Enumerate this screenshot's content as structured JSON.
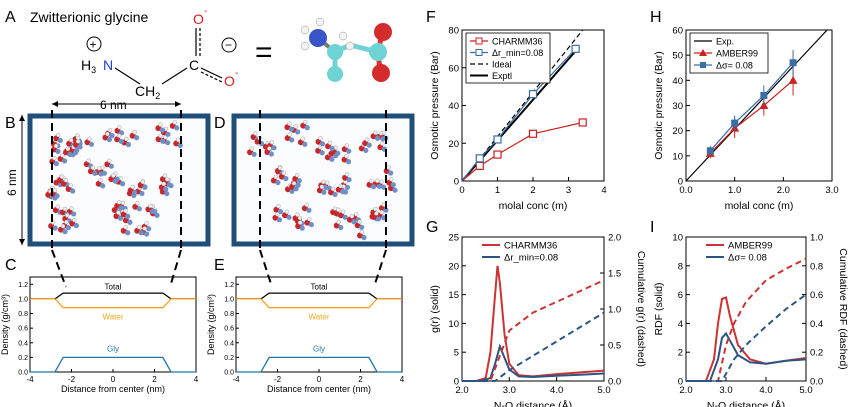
{
  "panel_labels": [
    "A",
    "B",
    "C",
    "D",
    "E",
    "F",
    "G",
    "H",
    "I"
  ],
  "panelA": {
    "title": "Zwitterionic glycine",
    "equals": "=",
    "formula": {
      "plus": "+",
      "h3": "H",
      "h3_sub": "3",
      "n": "N",
      "ch2": "CH",
      "ch2_sub": "2",
      "c": "C",
      "minus": "−",
      "o": "O",
      "o_sup": "-"
    }
  },
  "panelB": {
    "dimension_top": "6 nm",
    "dimension_side": "6 nm"
  },
  "density_panels": {
    "ylabel": "Density (g/cm³)",
    "xlabel": "Distance from center (nm)",
    "xticks": [
      "-4",
      "-2",
      "0",
      "2",
      "4"
    ],
    "yticks": [
      "0.0",
      "0.2",
      "0.4",
      "0.6",
      "0.8",
      "1.0",
      "1.2"
    ],
    "labels": [
      "Total",
      "Water",
      "Gly"
    ],
    "colors": {
      "total": "#000000",
      "water": "#f0a520",
      "gly": "#2276a8"
    }
  },
  "chart_data": [
    {
      "panel": "F",
      "type": "line",
      "xlabel": "molal conc (m)",
      "ylabel": "Osmotic pressure (Bar)",
      "xlim": [
        0,
        4
      ],
      "ylim": [
        0,
        80
      ],
      "xticks": [
        "0",
        "1",
        "2",
        "3",
        "4"
      ],
      "yticks": [
        "0",
        "20",
        "40",
        "60",
        "80"
      ],
      "legend": [
        "CHARMM36",
        "Δr_min=0.08",
        "Ideal",
        "Exptl"
      ],
      "series": [
        {
          "name": "CHARMM36",
          "color": "#cc2222",
          "x": [
            0.5,
            1.0,
            2.0,
            3.4
          ],
          "y": [
            8,
            14,
            25,
            31
          ]
        },
        {
          "name": "Δr_min=0.08",
          "color": "#3a6ea5",
          "x": [
            0.5,
            1.0,
            2.0,
            3.2
          ],
          "y": [
            12,
            22,
            46,
            70
          ]
        },
        {
          "name": "Ideal",
          "color": "#000000",
          "x": [
            0,
            3.4
          ],
          "y": [
            0,
            80
          ]
        },
        {
          "name": "Exptl",
          "color": "#000000",
          "x": [
            0,
            3.3
          ],
          "y": [
            0,
            71
          ]
        }
      ]
    },
    {
      "panel": "H",
      "type": "line",
      "xlabel": "molal conc (m)",
      "ylabel": "Osmotic pressure (Bar)",
      "xlim": [
        0,
        3
      ],
      "ylim": [
        0,
        60
      ],
      "xticks": [
        "0.0",
        "1.0",
        "2.0",
        "3.0"
      ],
      "yticks": [
        "0",
        "10",
        "20",
        "30",
        "40",
        "50",
        "60"
      ],
      "legend": [
        "Exp.",
        "AMBER99",
        "Δσ= 0.08"
      ],
      "series": [
        {
          "name": "Exp.",
          "color": "#000000",
          "x": [
            0,
            2.9
          ],
          "y": [
            0,
            60
          ]
        },
        {
          "name": "AMBER99",
          "color": "#cc2222",
          "x": [
            0.5,
            1.0,
            1.6,
            2.2
          ],
          "y": [
            11,
            21,
            30,
            40
          ],
          "err": [
            2,
            4,
            4,
            6
          ]
        },
        {
          "name": "Δσ= 0.08",
          "color": "#3a6ea5",
          "x": [
            0.5,
            1.0,
            1.6,
            2.2
          ],
          "y": [
            12,
            23,
            34,
            47
          ],
          "err": [
            2,
            3,
            4,
            5
          ]
        }
      ]
    },
    {
      "panel": "G",
      "type": "line",
      "xlabel": "N-O distance (Å)",
      "ylabel": "g(r) (solid)",
      "y2label": "Cumulative g(r) (dashed)",
      "xlim": [
        2,
        5
      ],
      "ylim": [
        0,
        25
      ],
      "y2lim": [
        0,
        2
      ],
      "xticks": [
        "2.0",
        "3.0",
        "4.0",
        "5.0"
      ],
      "yticks": [
        "0",
        "5",
        "10",
        "15",
        "20",
        "25"
      ],
      "y2ticks": [
        "0.0",
        "0.5",
        "1.0",
        "1.5",
        "2.0"
      ],
      "legend": [
        "CHARMM36",
        "Δr_min=0.08"
      ],
      "series": [
        {
          "name": "CHARMM36 g(r)",
          "color": "#cc3333",
          "style": "solid",
          "x": [
            2.0,
            2.3,
            2.5,
            2.6,
            2.7,
            2.75,
            2.8,
            2.9,
            3.0,
            3.2,
            3.5,
            4.0,
            4.5,
            5.0
          ],
          "y": [
            0,
            0,
            0.5,
            5,
            15,
            20,
            17,
            8,
            3,
            1,
            0.8,
            1.2,
            1.5,
            1.8
          ]
        },
        {
          "name": "Δr_min=0.08 g(r)",
          "color": "#2c5585",
          "style": "solid",
          "x": [
            2.0,
            2.4,
            2.6,
            2.7,
            2.8,
            2.9,
            3.0,
            3.2,
            3.5,
            4.0,
            4.5,
            5.0
          ],
          "y": [
            0,
            0,
            0.5,
            3,
            6,
            4,
            2,
            0.8,
            0.7,
            0.9,
            1.1,
            1.3
          ]
        },
        {
          "name": "CHARMM36 cumulative",
          "color": "#cc3333",
          "style": "dashed",
          "x": [
            2.0,
            2.6,
            2.8,
            3.0,
            3.5,
            4.0,
            4.5,
            5.0
          ],
          "y": [
            0,
            0,
            0.35,
            0.7,
            0.95,
            1.1,
            1.25,
            1.4
          ]
        },
        {
          "name": "Δr_min=0.08 cumulative",
          "color": "#2c5585",
          "style": "dashed",
          "x": [
            2.0,
            2.7,
            3.0,
            3.5,
            4.0,
            4.5,
            5.0
          ],
          "y": [
            0,
            0,
            0.15,
            0.35,
            0.55,
            0.75,
            0.95
          ]
        }
      ]
    },
    {
      "panel": "I",
      "type": "line",
      "xlabel": "N-O distance (Å)",
      "ylabel": "RDF (solid)",
      "y2label": "Cumulative RDF (dashed)",
      "xlim": [
        2,
        5
      ],
      "ylim": [
        0,
        10
      ],
      "y2lim": [
        0,
        1
      ],
      "xticks": [
        "2.0",
        "3.0",
        "4.0",
        "5.0"
      ],
      "yticks": [
        "0",
        "2",
        "4",
        "6",
        "8",
        "10"
      ],
      "y2ticks": [
        "0.0",
        "0.2",
        "0.4",
        "0.6",
        "0.8",
        "1.0"
      ],
      "legend": [
        "AMBER99",
        "Δσ= 0.08"
      ],
      "series": [
        {
          "name": "AMBER99 RDF",
          "color": "#cc3333",
          "style": "solid",
          "x": [
            2.0,
            2.5,
            2.7,
            2.8,
            2.9,
            3.0,
            3.1,
            3.3,
            3.6,
            4.0,
            4.5,
            5.0
          ],
          "y": [
            0,
            0,
            1.5,
            4,
            5.7,
            5.8,
            4.5,
            2.5,
            1.5,
            1.2,
            1.4,
            1.6
          ]
        },
        {
          "name": "Δσ= 0.08 RDF",
          "color": "#2c5585",
          "style": "solid",
          "x": [
            2.0,
            2.6,
            2.8,
            2.9,
            3.0,
            3.1,
            3.3,
            3.6,
            4.0,
            4.5,
            5.0
          ],
          "y": [
            0,
            0,
            1.5,
            3,
            3.3,
            2.8,
            1.8,
            1.3,
            1.2,
            1.4,
            1.5
          ]
        },
        {
          "name": "AMBER99 cumulative",
          "color": "#cc3333",
          "style": "dashed",
          "x": [
            2.0,
            2.8,
            3.0,
            3.2,
            3.5,
            4.0,
            4.5,
            5.0
          ],
          "y": [
            0,
            0,
            0.25,
            0.4,
            0.55,
            0.7,
            0.78,
            0.85
          ]
        },
        {
          "name": "Δσ= 0.08 cumulative",
          "color": "#2c5585",
          "style": "dashed",
          "x": [
            2.0,
            2.9,
            3.2,
            3.5,
            4.0,
            4.5,
            5.0
          ],
          "y": [
            0,
            0,
            0.15,
            0.25,
            0.38,
            0.5,
            0.6
          ]
        }
      ]
    }
  ]
}
